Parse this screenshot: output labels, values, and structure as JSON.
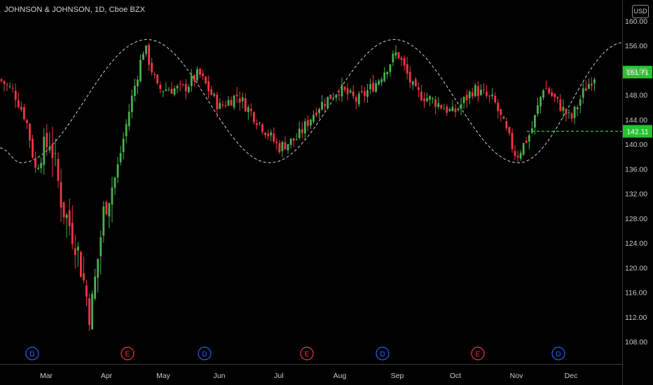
{
  "header": {
    "title": "JOHNSON & JOHNSON, 1D, Cboe BZX",
    "currency": "USD"
  },
  "price_tags": {
    "current": "151.71",
    "marked": "142.11"
  },
  "colors": {
    "up": "#26a69a",
    "down": "#ef5350",
    "up_candle": "#4caf50",
    "down_candle": "#f23645",
    "tag_green": "#22c32e",
    "line_dashed": "#d0d0d0",
    "axis_text": "#c8c8c8",
    "event_blue": "#2962ff",
    "event_red": "#f23645"
  },
  "events": [
    {
      "label": "D",
      "kind": "dividend",
      "month": "Feb"
    },
    {
      "label": "E",
      "kind": "earnings",
      "month": "Apr"
    },
    {
      "label": "D",
      "kind": "dividend",
      "month": "May"
    },
    {
      "label": "E",
      "kind": "earnings",
      "month": "Jul"
    },
    {
      "label": "D",
      "kind": "dividend",
      "month": "Aug"
    },
    {
      "label": "E",
      "kind": "earnings",
      "month": "Oct"
    },
    {
      "label": "D",
      "kind": "dividend",
      "month": "Nov"
    }
  ],
  "chart_data": {
    "type": "candlestick",
    "symbol": "JNJ",
    "ylim": [
      104,
      160
    ],
    "y_ticks": [
      "108.00",
      "112.00",
      "116.00",
      "120.00",
      "124.00",
      "128.00",
      "132.00",
      "136.00",
      "140.00",
      "144.00",
      "148.00",
      "152.00",
      "156.00",
      "160.00"
    ],
    "x_ticks": [
      "Mar",
      "Apr",
      "May",
      "Jun",
      "Jul",
      "Aug",
      "Sep",
      "Oct",
      "Nov",
      "Dec"
    ],
    "horizontal_line": 142.11,
    "last_price": 151.71,
    "sine_overlay": {
      "amplitude_low": 137,
      "amplitude_high": 157,
      "troughs": [
        "Feb",
        "Jul",
        "Nov"
      ],
      "peaks": [
        "Apr",
        "Aug"
      ]
    },
    "keypoints": [
      {
        "date": "Feb 1",
        "close": 150.5
      },
      {
        "date": "Feb 10",
        "close": 148.5
      },
      {
        "date": "Feb 18",
        "close": 144.0
      },
      {
        "date": "Feb 24",
        "close": 136.0
      },
      {
        "date": "Mar 3",
        "close": 141.0
      },
      {
        "date": "Mar 9",
        "close": 130.0
      },
      {
        "date": "Mar 16",
        "close": 124.0
      },
      {
        "date": "Mar 23",
        "close": 112.0
      },
      {
        "date": "Mar 30",
        "close": 130.0
      },
      {
        "date": "Apr 6",
        "close": 135.0
      },
      {
        "date": "Apr 14",
        "close": 147.0
      },
      {
        "date": "Apr 21",
        "close": 156.0
      },
      {
        "date": "Apr 28",
        "close": 149.0
      },
      {
        "date": "May 12",
        "close": 149.0
      },
      {
        "date": "May 20",
        "close": 151.5
      },
      {
        "date": "Jun 1",
        "close": 146.0
      },
      {
        "date": "Jun 10",
        "close": 148.0
      },
      {
        "date": "Jun 20",
        "close": 144.0
      },
      {
        "date": "Jul 1",
        "close": 139.5
      },
      {
        "date": "Jul 10",
        "close": 141.0
      },
      {
        "date": "Jul 20",
        "close": 146.0
      },
      {
        "date": "Jul 31",
        "close": 149.0
      },
      {
        "date": "Aug 10",
        "close": 147.0
      },
      {
        "date": "Aug 20",
        "close": 150.0
      },
      {
        "date": "Aug 31",
        "close": 155.0
      },
      {
        "date": "Sep 10",
        "close": 148.5
      },
      {
        "date": "Sep 20",
        "close": 147.0
      },
      {
        "date": "Sep 30",
        "close": 145.0
      },
      {
        "date": "Oct 10",
        "close": 149.0
      },
      {
        "date": "Oct 20",
        "close": 147.0
      },
      {
        "date": "Oct 31",
        "close": 138.0
      },
      {
        "date": "Nov 9",
        "close": 142.0
      },
      {
        "date": "Nov 16",
        "close": 149.5
      },
      {
        "date": "Nov 23",
        "close": 147.0
      },
      {
        "date": "Dec 1",
        "close": 144.0
      },
      {
        "date": "Dec 8",
        "close": 149.0
      },
      {
        "date": "Dec 14",
        "close": 151.7
      }
    ]
  }
}
